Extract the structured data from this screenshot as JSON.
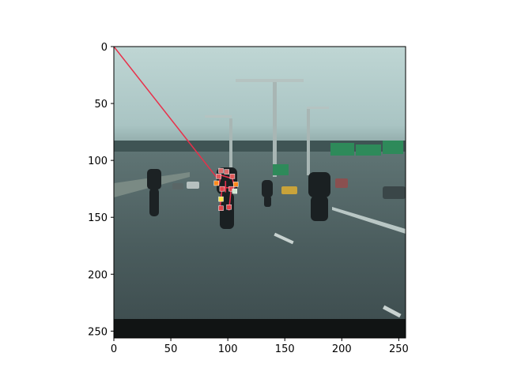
{
  "chart_data": {
    "type": "scatter",
    "title": "",
    "xlabel": "",
    "ylabel": "",
    "xlim": [
      0,
      256
    ],
    "ylim": [
      256,
      0
    ],
    "y_inverted": true,
    "grid": false,
    "background": "photo of motorcycles riding on a highway",
    "x_ticks": [
      0,
      50,
      100,
      150,
      200,
      250
    ],
    "y_ticks": [
      0,
      50,
      100,
      150,
      200,
      250
    ],
    "overlay_line": {
      "color": "#e8304a",
      "points": [
        [
          0,
          0
        ],
        [
          91,
          116
        ]
      ]
    },
    "pose_segments": {
      "color": "#e8304a",
      "segments": [
        [
          [
            94,
            113
          ],
          [
            104,
            116
          ]
        ],
        [
          [
            94,
            113
          ],
          [
            92,
            122
          ]
        ],
        [
          [
            104,
            116
          ],
          [
            106,
            124
          ]
        ],
        [
          [
            95,
            124
          ],
          [
            103,
            124
          ]
        ],
        [
          [
            95,
            124
          ],
          [
            93,
            143
          ]
        ],
        [
          [
            103,
            124
          ],
          [
            101,
            144
          ]
        ],
        [
          [
            98,
            118
          ],
          [
            98,
            128
          ]
        ]
      ]
    },
    "keypoints": [
      {
        "x": 94,
        "y": 109,
        "color": "#d96b6b"
      },
      {
        "x": 99,
        "y": 110,
        "color": "#d96b6b"
      },
      {
        "x": 92,
        "y": 114,
        "color": "#e05a5a"
      },
      {
        "x": 104,
        "y": 114,
        "color": "#e05a5a"
      },
      {
        "x": 90,
        "y": 120,
        "color": "#ff8a1e"
      },
      {
        "x": 107,
        "y": 121,
        "color": "#ff8a1e"
      },
      {
        "x": 95,
        "y": 125,
        "color": "#e0444a"
      },
      {
        "x": 103,
        "y": 125,
        "color": "#e0444a"
      },
      {
        "x": 106,
        "y": 127,
        "color": "#cfe8d2"
      },
      {
        "x": 94,
        "y": 134,
        "color": "#ffe34a"
      },
      {
        "x": 94,
        "y": 142,
        "color": "#e0444a"
      },
      {
        "x": 101,
        "y": 141,
        "color": "#e0444a"
      }
    ]
  }
}
